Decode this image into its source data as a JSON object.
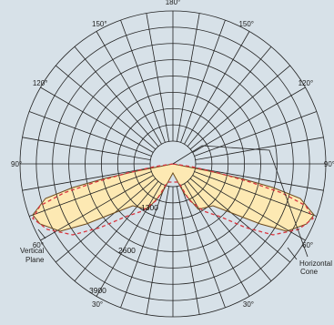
{
  "diagram": {
    "angle_labels": [
      {
        "text": "180°",
        "deg": 180
      },
      {
        "text": "150°",
        "deg": 150,
        "side": "left"
      },
      {
        "text": "150°",
        "deg": 150,
        "side": "right"
      },
      {
        "text": "120°",
        "deg": 120,
        "side": "left"
      },
      {
        "text": "120°",
        "deg": 120,
        "side": "right"
      },
      {
        "text": "90°",
        "deg": 90,
        "side": "left"
      },
      {
        "text": "90°",
        "deg": 90,
        "side": "right"
      },
      {
        "text": "60°",
        "deg": 60,
        "side": "left"
      },
      {
        "text": "60°",
        "deg": 60,
        "side": "right"
      },
      {
        "text": "30°",
        "deg": 30,
        "side": "left"
      },
      {
        "text": "30°",
        "deg": 30,
        "side": "right"
      },
      {
        "text": "0°",
        "deg": 0
      }
    ],
    "value_labels": [
      "1300",
      "2600",
      "3900"
    ],
    "annotations": {
      "vertical_plane": [
        "Vertical",
        "Plane"
      ],
      "horizontal_cone": [
        "Horizontal",
        "Cone"
      ]
    },
    "colors": {
      "background": "#d7e1e8",
      "grid": "#222222",
      "fill": "#fde9b3",
      "dashed_curve": "#d8353f",
      "solid_curve": "#6b4a1e"
    },
    "scale": {
      "max_candela": 5200,
      "rings": 8,
      "ring_step": 650,
      "spokes_deg": 10
    }
  }
}
